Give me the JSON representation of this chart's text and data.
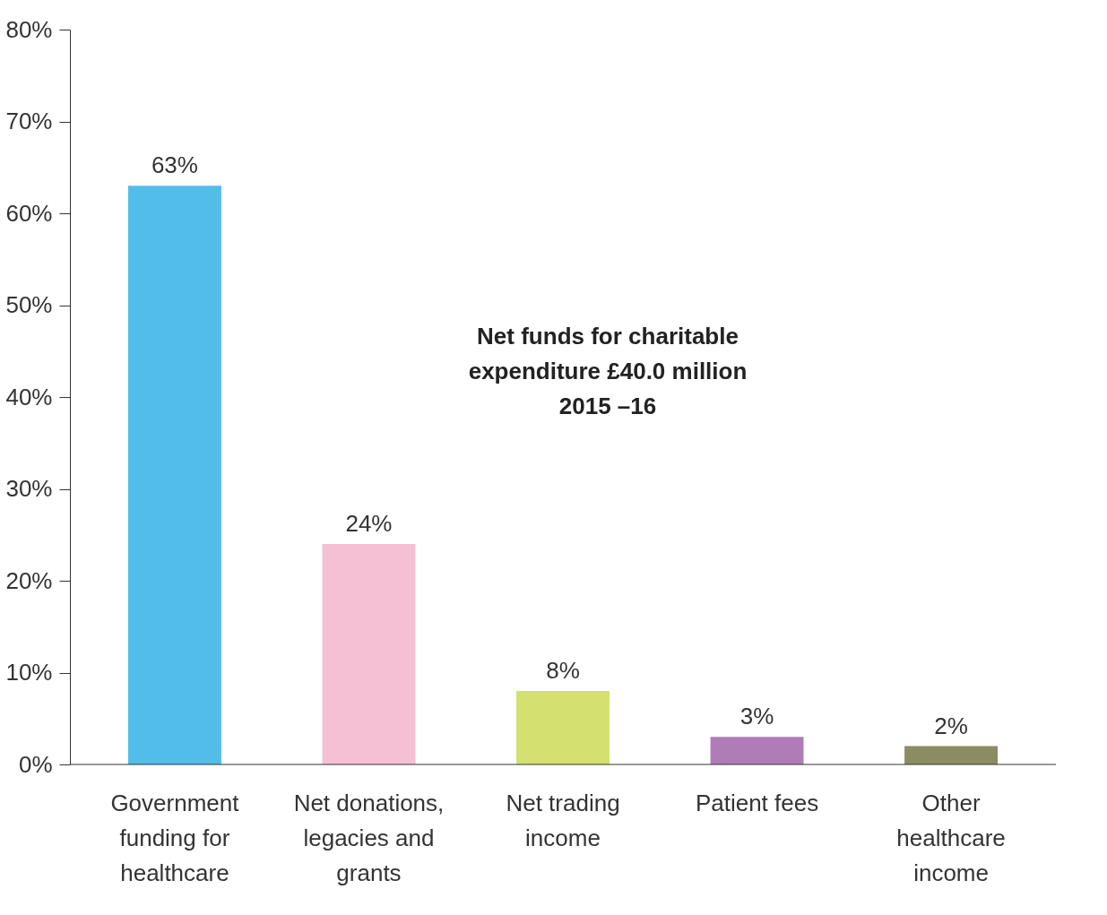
{
  "chart_data": {
    "type": "bar",
    "title": "Net funds for charitable\nexpenditure £40.0 million\n2015 –16",
    "categories": [
      "Government funding for healthcare",
      "Net donations, legacies and grants",
      "Net trading income",
      "Patient fees",
      "Other healthcare income"
    ],
    "values": [
      63,
      24,
      8,
      3,
      2
    ],
    "colors": [
      "#52bde9",
      "#f5c0d4",
      "#d4e070",
      "#b07cb8",
      "#8a8c62"
    ],
    "value_labels": [
      "63%",
      "24%",
      "8%",
      "3%",
      "2%"
    ],
    "ylim": [
      0,
      80
    ],
    "yticks": [
      {
        "value": 0,
        "label": "0%"
      },
      {
        "value": 10,
        "label": "10%"
      },
      {
        "value": 20,
        "label": "20%"
      },
      {
        "value": 30,
        "label": "30%"
      },
      {
        "value": 40,
        "label": "40%"
      },
      {
        "value": 50,
        "label": "50%"
      },
      {
        "value": 60,
        "label": "60%"
      },
      {
        "value": 70,
        "label": "70%"
      },
      {
        "value": 80,
        "label": "80%"
      }
    ],
    "grid": false
  }
}
